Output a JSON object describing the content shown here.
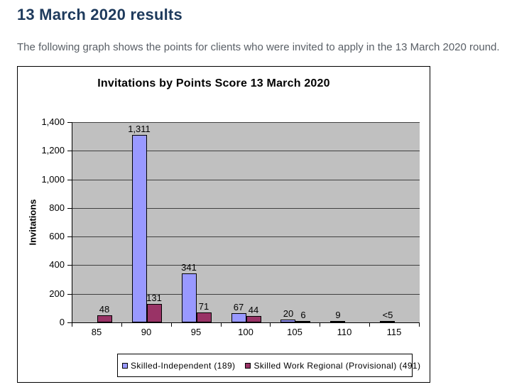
{
  "page": {
    "title": "13 March 2020 results",
    "description": "The following graph shows the points for clients who were invited to apply in the 13 March 2020 round."
  },
  "colors": {
    "heading_text": "#1e3a5c",
    "body_text": "#595f66",
    "chart_border": "#000000",
    "plot_background": "#c0c0c0",
    "gridline": "#404040",
    "bar_border": "#000000",
    "series1_fill": "#9999ff",
    "series2_fill": "#993366"
  },
  "chart_data": {
    "type": "bar",
    "title": "Invitations by Points Score 13 March 2020",
    "xlabel": "",
    "ylabel": "Invitations",
    "categories": [
      "85",
      "90",
      "95",
      "100",
      "105",
      "110",
      "115"
    ],
    "ylim": [
      0,
      1400
    ],
    "ytick_interval": 200,
    "ytick_labels": [
      "0",
      "200",
      "400",
      "600",
      "800",
      "1,000",
      "1,200",
      "1,400"
    ],
    "grid": true,
    "plot_background": "#c0c0c0",
    "legend_position": "bottom",
    "series": [
      {
        "name": "Skilled-Independent (189)",
        "color": "#9999ff",
        "values": [
          null,
          1311,
          341,
          67,
          20,
          9,
          3
        ],
        "labels": [
          "",
          "1,311",
          "341",
          "67",
          "20",
          "9",
          "<5"
        ]
      },
      {
        "name": "Skilled Work Regional (Provisional) (491)",
        "color": "#993366",
        "values": [
          48,
          131,
          71,
          44,
          6,
          null,
          null
        ],
        "labels": [
          "48",
          "131",
          "71",
          "44",
          "6",
          "",
          ""
        ]
      }
    ]
  }
}
